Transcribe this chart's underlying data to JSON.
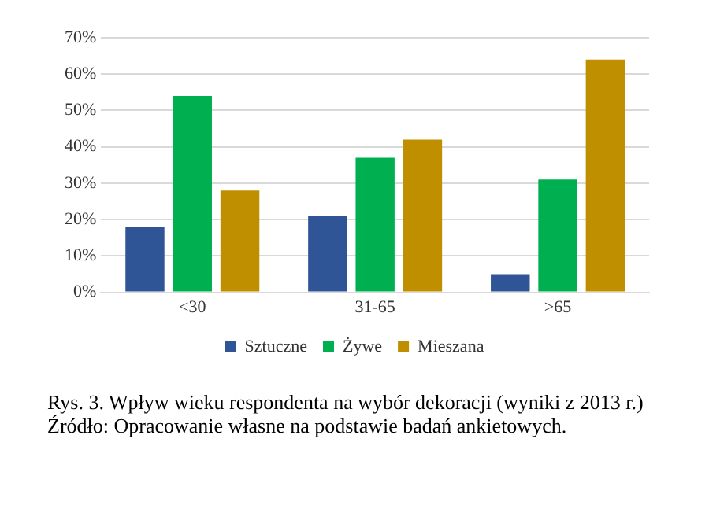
{
  "chart_data": {
    "type": "bar",
    "categories": [
      "<30",
      "31-65",
      ">65"
    ],
    "series": [
      {
        "name": "Sztuczne",
        "color": "#2f5597",
        "values": [
          18,
          21,
          5
        ]
      },
      {
        "name": "Żywe",
        "color": "#00b050",
        "values": [
          54,
          37,
          31
        ]
      },
      {
        "name": "Mieszana",
        "color": "#bf8f00",
        "values": [
          28,
          42,
          64
        ]
      }
    ],
    "ylim": [
      0,
      70
    ],
    "yticks": [
      {
        "value": 0,
        "label": "0%"
      },
      {
        "value": 10,
        "label": "10%"
      },
      {
        "value": 20,
        "label": "20%"
      },
      {
        "value": 30,
        "label": "30%"
      },
      {
        "value": 40,
        "label": "40%"
      },
      {
        "value": 50,
        "label": "50%"
      },
      {
        "value": 60,
        "label": "60%"
      },
      {
        "value": 70,
        "label": "70%"
      }
    ],
    "grid": "y",
    "legend": "bottom",
    "annotations": [
      "Rys. 3. Wpływ wieku respondenta na wybór dekoracji (wyniki z 2013 r.)",
      "Źródło: Opracowanie własne na podstawie badań ankietowych."
    ]
  }
}
